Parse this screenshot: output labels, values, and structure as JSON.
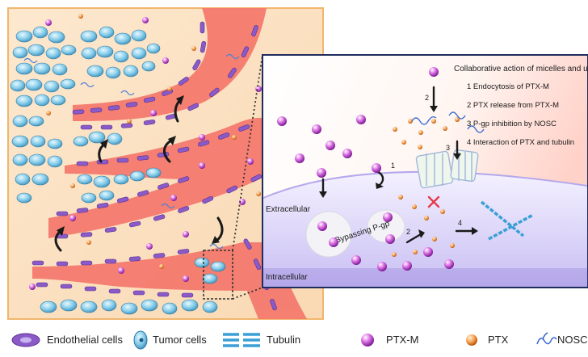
{
  "inset": {
    "title": "Collaborative action of micelles and unime",
    "steps": [
      "1 Endocytosis of PTX-M",
      "2 PTX release from PTX-M",
      "3 P-gp inhibition by NOSC",
      "4 Interaction of PTX and tubulin"
    ],
    "extracellular": "Extracellular",
    "intracellular": "Intracellular",
    "bypass": "Bypassing P-gp",
    "marks": [
      "2",
      "1",
      "3",
      "2",
      "4"
    ]
  },
  "legend": {
    "endothelial": "Endothelial cells",
    "tumor": "Tumor cells",
    "tubulin": "Tubulin",
    "ptxm": "PTX-M",
    "ptx": "PTX",
    "nosc": "NOSC"
  },
  "colors": {
    "tissue_bg": "#fbe3c4",
    "vessel": "#f47a6e",
    "tumor_cell": "#7ec7e6",
    "endothelial": "#8a5bc7",
    "ptxm": "#c64fd3",
    "ptx": "#f29a49",
    "inset_bg": "#ffffff",
    "membrane": "#ece7fb",
    "tubulin": "#3a9fd6"
  }
}
